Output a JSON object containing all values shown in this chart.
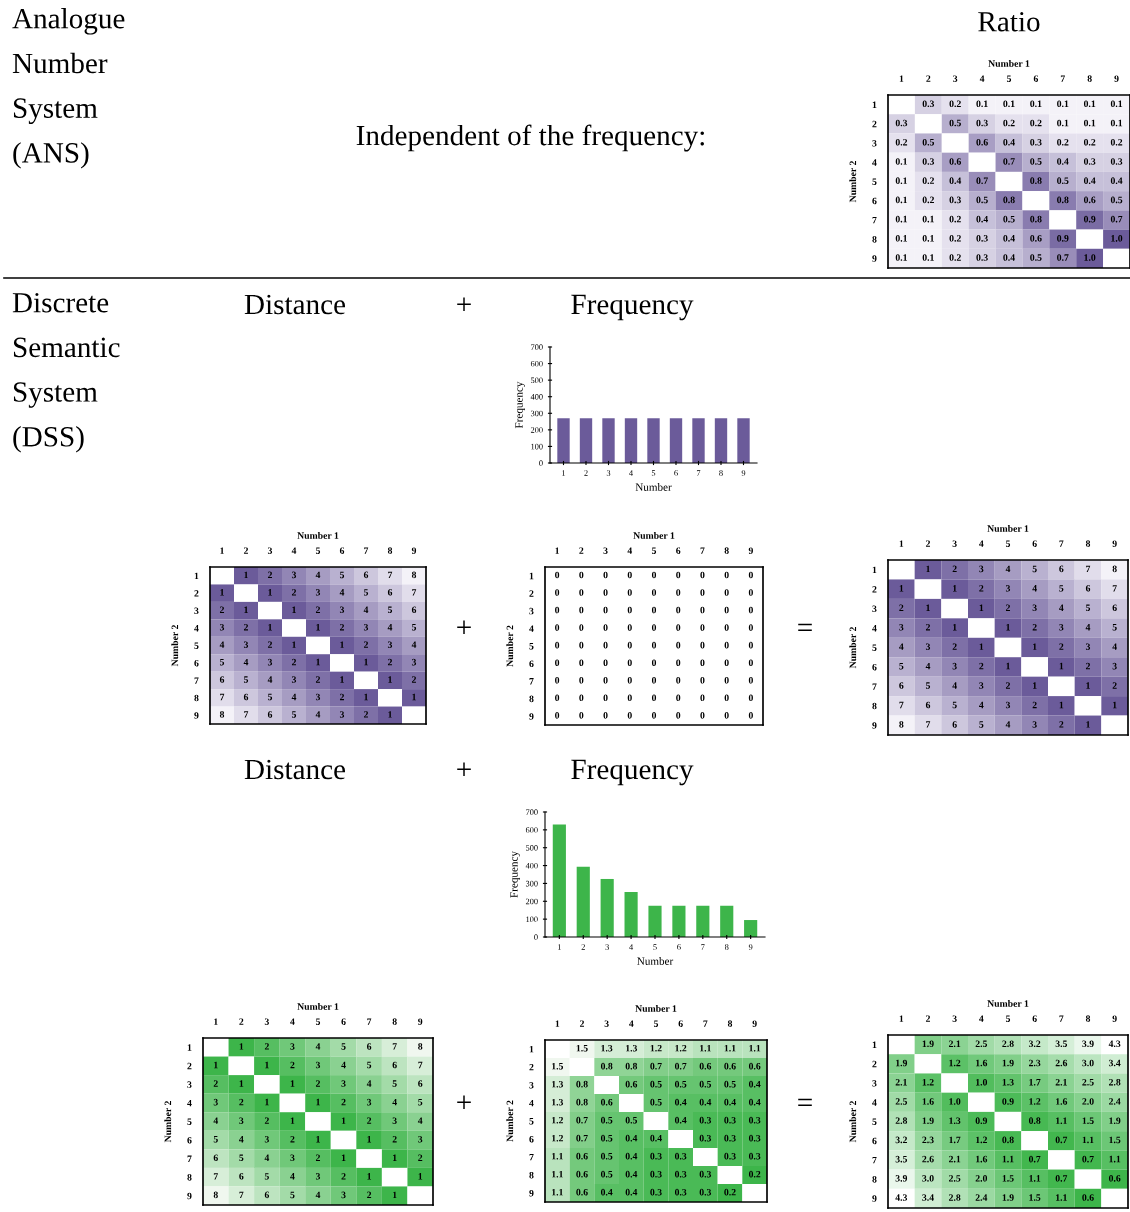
{
  "chart_data": [
    {
      "type": "other",
      "annotations": [
        "Analogue\nNumber\nSystem\n(ANS)",
        "Independent of the frequency:",
        "Discrete\nSemantic\nSystem\n(DSS)",
        "Distance",
        "+",
        "Frequency",
        "+",
        "=",
        "Distance",
        "+",
        "Frequency",
        "+",
        "="
      ]
    },
    {
      "type": "heatmap",
      "title": "Ratio",
      "cell_labels": [
        [
          null,
          "0.3",
          "0.2",
          "0.1",
          "0.1",
          "0.1",
          "0.1",
          "0.1",
          "0.1"
        ],
        [
          "0.3",
          null,
          "0.5",
          "0.3",
          "0.2",
          "0.2",
          "0.1",
          "0.1",
          "0.1"
        ],
        [
          "0.2",
          "0.5",
          null,
          "0.6",
          "0.4",
          "0.3",
          "0.2",
          "0.2",
          "0.2"
        ],
        [
          "0.1",
          "0.3",
          "0.6",
          null,
          "0.7",
          "0.5",
          "0.4",
          "0.3",
          "0.3"
        ],
        [
          "0.1",
          "0.2",
          "0.4",
          "0.7",
          null,
          "0.8",
          "0.5",
          "0.4",
          "0.4"
        ],
        [
          "0.1",
          "0.2",
          "0.3",
          "0.5",
          "0.8",
          null,
          "0.8",
          "0.6",
          "0.5"
        ],
        [
          "0.1",
          "0.1",
          "0.2",
          "0.4",
          "0.5",
          "0.8",
          null,
          "0.9",
          "0.7"
        ],
        [
          "0.1",
          "0.1",
          "0.2",
          "0.3",
          "0.4",
          "0.6",
          "0.9",
          null,
          "1.0"
        ],
        [
          "0.1",
          "0.1",
          "0.2",
          "0.3",
          "0.4",
          "0.5",
          "0.7",
          "1.0",
          null
        ]
      ],
      "xlabel": "Number 1",
      "ylabel": "Number 2",
      "data_labels": true,
      "colors": [
        "#f4f2f8",
        "#6b5b9a"
      ],
      "categories": [
        "1",
        "2",
        "3",
        "4",
        "5",
        "6",
        "7",
        "8",
        "9"
      ],
      "y_categories": [
        "1",
        "2",
        "3",
        "4",
        "5",
        "6",
        "7",
        "8",
        "9"
      ],
      "cells": [
        [
          null,
          0.3,
          0.2,
          0.1,
          0.1,
          0.1,
          0.1,
          0.1,
          0.1
        ],
        [
          0.3,
          null,
          0.5,
          0.3,
          0.2,
          0.2,
          0.1,
          0.1,
          0.1
        ],
        [
          0.2,
          0.5,
          null,
          0.6,
          0.4,
          0.3,
          0.2,
          0.2,
          0.2
        ],
        [
          0.1,
          0.3,
          0.6,
          null,
          0.7,
          0.5,
          0.4,
          0.3,
          0.3
        ],
        [
          0.1,
          0.2,
          0.4,
          0.7,
          null,
          0.8,
          0.5,
          0.4,
          0.4
        ],
        [
          0.1,
          0.2,
          0.3,
          0.5,
          0.8,
          null,
          0.8,
          0.6,
          0.5
        ],
        [
          0.1,
          0.1,
          0.2,
          0.4,
          0.5,
          0.8,
          null,
          0.9,
          0.7
        ],
        [
          0.1,
          0.1,
          0.2,
          0.3,
          0.4,
          0.6,
          0.9,
          null,
          1.0
        ],
        [
          0.1,
          0.1,
          0.2,
          0.3,
          0.4,
          0.5,
          0.7,
          1.0,
          null
        ]
      ]
    },
    {
      "type": "bar",
      "xlabel": "Number",
      "ylabel": "Frequency",
      "categories": [
        "1",
        "2",
        "3",
        "4",
        "5",
        "6",
        "7",
        "8",
        "9"
      ],
      "values": [
        270,
        270,
        270,
        270,
        270,
        270,
        270,
        270,
        270
      ],
      "color": "#6b5b9a",
      "ylim": [
        0,
        700
      ],
      "yticks": [
        0,
        100,
        200,
        300,
        400,
        500,
        600,
        700
      ]
    },
    {
      "type": "heatmap",
      "xlabel": "Number 1",
      "ylabel": "Number 2",
      "data_labels": true,
      "colors": [
        "#6b5b9a",
        "#f4f2f8"
      ],
      "categories": [
        "1",
        "2",
        "3",
        "4",
        "5",
        "6",
        "7",
        "8",
        "9"
      ],
      "y_categories": [
        "1",
        "2",
        "3",
        "4",
        "5",
        "6",
        "7",
        "8",
        "9"
      ],
      "cells": [
        [
          null,
          1,
          2,
          3,
          4,
          5,
          6,
          7,
          8
        ],
        [
          1,
          null,
          1,
          2,
          3,
          4,
          5,
          6,
          7
        ],
        [
          2,
          1,
          null,
          1,
          2,
          3,
          4,
          5,
          6
        ],
        [
          3,
          2,
          1,
          null,
          1,
          2,
          3,
          4,
          5
        ],
        [
          4,
          3,
          2,
          1,
          null,
          1,
          2,
          3,
          4
        ],
        [
          5,
          4,
          3,
          2,
          1,
          null,
          1,
          2,
          3
        ],
        [
          6,
          5,
          4,
          3,
          2,
          1,
          null,
          1,
          2
        ],
        [
          7,
          6,
          5,
          4,
          3,
          2,
          1,
          null,
          1
        ],
        [
          8,
          7,
          6,
          5,
          4,
          3,
          2,
          1,
          null
        ]
      ]
    },
    {
      "type": "heatmap",
      "xlabel": "Number 1",
      "ylabel": "Number 2",
      "data_labels": true,
      "colors": [
        "#ffffff",
        "#ffffff"
      ],
      "categories": [
        "1",
        "2",
        "3",
        "4",
        "5",
        "6",
        "7",
        "8",
        "9"
      ],
      "y_categories": [
        "1",
        "2",
        "3",
        "4",
        "5",
        "6",
        "7",
        "8",
        "9"
      ],
      "cells": [
        [
          0,
          0,
          0,
          0,
          0,
          0,
          0,
          0,
          0
        ],
        [
          0,
          0,
          0,
          0,
          0,
          0,
          0,
          0,
          0
        ],
        [
          0,
          0,
          0,
          0,
          0,
          0,
          0,
          0,
          0
        ],
        [
          0,
          0,
          0,
          0,
          0,
          0,
          0,
          0,
          0
        ],
        [
          0,
          0,
          0,
          0,
          0,
          0,
          0,
          0,
          0
        ],
        [
          0,
          0,
          0,
          0,
          0,
          0,
          0,
          0,
          0
        ],
        [
          0,
          0,
          0,
          0,
          0,
          0,
          0,
          0,
          0
        ],
        [
          0,
          0,
          0,
          0,
          0,
          0,
          0,
          0,
          0
        ],
        [
          0,
          0,
          0,
          0,
          0,
          0,
          0,
          0,
          0
        ]
      ]
    },
    {
      "type": "heatmap",
      "xlabel": "Number 1",
      "ylabel": "Number 2",
      "data_labels": true,
      "colors": [
        "#6b5b9a",
        "#f4f2f8"
      ],
      "categories": [
        "1",
        "2",
        "3",
        "4",
        "5",
        "6",
        "7",
        "8",
        "9"
      ],
      "y_categories": [
        "1",
        "2",
        "3",
        "4",
        "5",
        "6",
        "7",
        "8",
        "9"
      ],
      "cells": [
        [
          null,
          1,
          2,
          3,
          4,
          5,
          6,
          7,
          8
        ],
        [
          1,
          null,
          1,
          2,
          3,
          4,
          5,
          6,
          7
        ],
        [
          2,
          1,
          null,
          1,
          2,
          3,
          4,
          5,
          6
        ],
        [
          3,
          2,
          1,
          null,
          1,
          2,
          3,
          4,
          5
        ],
        [
          4,
          3,
          2,
          1,
          null,
          1,
          2,
          3,
          4
        ],
        [
          5,
          4,
          3,
          2,
          1,
          null,
          1,
          2,
          3
        ],
        [
          6,
          5,
          4,
          3,
          2,
          1,
          null,
          1,
          2
        ],
        [
          7,
          6,
          5,
          4,
          3,
          2,
          1,
          null,
          1
        ],
        [
          8,
          7,
          6,
          5,
          4,
          3,
          2,
          1,
          null
        ]
      ]
    },
    {
      "type": "bar",
      "xlabel": "Number",
      "ylabel": "Frequency",
      "categories": [
        "1",
        "2",
        "3",
        "4",
        "5",
        "6",
        "7",
        "8",
        "9"
      ],
      "values": [
        630,
        393,
        325,
        252,
        175,
        175,
        175,
        175,
        95
      ],
      "color": "#3db54a",
      "ylim": [
        0,
        700
      ],
      "yticks": [
        0,
        100,
        200,
        300,
        400,
        500,
        600,
        700
      ]
    },
    {
      "type": "heatmap",
      "xlabel": "Number 1",
      "ylabel": "Number 2",
      "data_labels": true,
      "colors": [
        "#3db54a",
        "#f0f7ef"
      ],
      "categories": [
        "1",
        "2",
        "3",
        "4",
        "5",
        "6",
        "7",
        "8",
        "9"
      ],
      "y_categories": [
        "1",
        "2",
        "3",
        "4",
        "5",
        "6",
        "7",
        "8",
        "9"
      ],
      "cells": [
        [
          null,
          1,
          2,
          3,
          4,
          5,
          6,
          7,
          8
        ],
        [
          1,
          null,
          1,
          2,
          3,
          4,
          5,
          6,
          7
        ],
        [
          2,
          1,
          null,
          1,
          2,
          3,
          4,
          5,
          6
        ],
        [
          3,
          2,
          1,
          null,
          1,
          2,
          3,
          4,
          5
        ],
        [
          4,
          3,
          2,
          1,
          null,
          1,
          2,
          3,
          4
        ],
        [
          5,
          4,
          3,
          2,
          1,
          null,
          1,
          2,
          3
        ],
        [
          6,
          5,
          4,
          3,
          2,
          1,
          null,
          1,
          2
        ],
        [
          7,
          6,
          5,
          4,
          3,
          2,
          1,
          null,
          1
        ],
        [
          8,
          7,
          6,
          5,
          4,
          3,
          2,
          1,
          null
        ]
      ]
    },
    {
      "type": "heatmap",
      "xlabel": "Number 1",
      "ylabel": "Number 2",
      "data_labels": true,
      "colors": [
        "#3db54a",
        "#f0f7ef"
      ],
      "categories": [
        "1",
        "2",
        "3",
        "4",
        "5",
        "6",
        "7",
        "8",
        "9"
      ],
      "y_categories": [
        "1",
        "2",
        "3",
        "4",
        "5",
        "6",
        "7",
        "8",
        "9"
      ],
      "cells": [
        [
          null,
          1.5,
          1.3,
          1.3,
          1.2,
          1.2,
          1.1,
          1.1,
          1.1
        ],
        [
          1.5,
          null,
          0.8,
          0.8,
          0.7,
          0.7,
          0.6,
          0.6,
          0.6
        ],
        [
          1.3,
          0.8,
          null,
          0.6,
          0.5,
          0.5,
          0.5,
          0.5,
          0.4
        ],
        [
          1.3,
          0.8,
          0.6,
          null,
          0.5,
          0.4,
          0.4,
          0.4,
          0.4
        ],
        [
          1.2,
          0.7,
          0.5,
          0.5,
          null,
          0.4,
          0.3,
          0.3,
          0.3
        ],
        [
          1.2,
          0.7,
          0.5,
          0.4,
          0.4,
          null,
          0.3,
          0.3,
          0.3
        ],
        [
          1.1,
          0.6,
          0.5,
          0.4,
          0.3,
          0.3,
          null,
          0.3,
          0.3
        ],
        [
          1.1,
          0.6,
          0.5,
          0.4,
          0.3,
          0.3,
          0.3,
          null,
          0.2
        ],
        [
          1.1,
          0.6,
          0.4,
          0.4,
          0.3,
          0.3,
          0.3,
          0.2,
          null
        ]
      ]
    },
    {
      "type": "heatmap",
      "xlabel": "Number 1",
      "ylabel": "Number 2",
      "data_labels": true,
      "colors": [
        "#3db54a",
        "#ffffff"
      ],
      "cell_labels": [
        [
          null,
          "1.9",
          "2.1",
          "2.5",
          "2.8",
          "3.2",
          "3.5",
          "3.9",
          "4.3"
        ],
        [
          "1.9",
          null,
          "1.2",
          "1.6",
          "1.9",
          "2.3",
          "2.6",
          "3.0",
          "3.4"
        ],
        [
          "2.1",
          "1.2",
          null,
          "1.0",
          "1.3",
          "1.7",
          "2.1",
          "2.5",
          "2.8"
        ],
        [
          "2.5",
          "1.6",
          "1.0",
          null,
          "0.9",
          "1.2",
          "1.6",
          "2.0",
          "2.4"
        ],
        [
          "2.8",
          "1.9",
          "1.3",
          "0.9",
          null,
          "0.8",
          "1.1",
          "1.5",
          "1.9"
        ],
        [
          "3.2",
          "2.3",
          "1.7",
          "1.2",
          "0.8",
          null,
          "0.7",
          "1.1",
          "1.5"
        ],
        [
          "3.5",
          "2.6",
          "2.1",
          "1.6",
          "1.1",
          "0.7",
          null,
          "0.7",
          "1.1"
        ],
        [
          "3.9",
          "3.0",
          "2.5",
          "2.0",
          "1.5",
          "1.1",
          "0.7",
          null,
          "0.6"
        ],
        [
          "4.3",
          "3.4",
          "2.8",
          "2.4",
          "1.9",
          "1.5",
          "1.1",
          "0.6",
          null
        ]
      ],
      "categories": [
        "1",
        "2",
        "3",
        "4",
        "5",
        "6",
        "7",
        "8",
        "9"
      ],
      "y_categories": [
        "1",
        "2",
        "3",
        "4",
        "5",
        "6",
        "7",
        "8",
        "9"
      ],
      "cells": [
        [
          null,
          1.9,
          2.1,
          2.5,
          2.8,
          3.2,
          3.5,
          3.9,
          4.3
        ],
        [
          1.9,
          null,
          1.2,
          1.6,
          1.9,
          2.3,
          2.6,
          3.0,
          3.4
        ],
        [
          2.1,
          1.2,
          null,
          1.0,
          1.3,
          1.7,
          2.1,
          2.5,
          2.8
        ],
        [
          2.5,
          1.6,
          1.0,
          null,
          0.9,
          1.2,
          1.6,
          2.0,
          2.4
        ],
        [
          2.8,
          1.9,
          1.3,
          0.9,
          null,
          0.8,
          1.1,
          1.5,
          1.9
        ],
        [
          3.2,
          2.3,
          1.7,
          1.2,
          0.8,
          null,
          0.7,
          1.1,
          1.5
        ],
        [
          3.5,
          2.6,
          2.1,
          1.6,
          1.1,
          0.7,
          null,
          0.7,
          1.1
        ],
        [
          3.9,
          3.0,
          2.5,
          2.0,
          1.5,
          1.1,
          0.7,
          null,
          0.6
        ],
        [
          4.3,
          3.4,
          2.8,
          2.4,
          1.9,
          1.5,
          1.1,
          0.6,
          null
        ]
      ]
    }
  ]
}
